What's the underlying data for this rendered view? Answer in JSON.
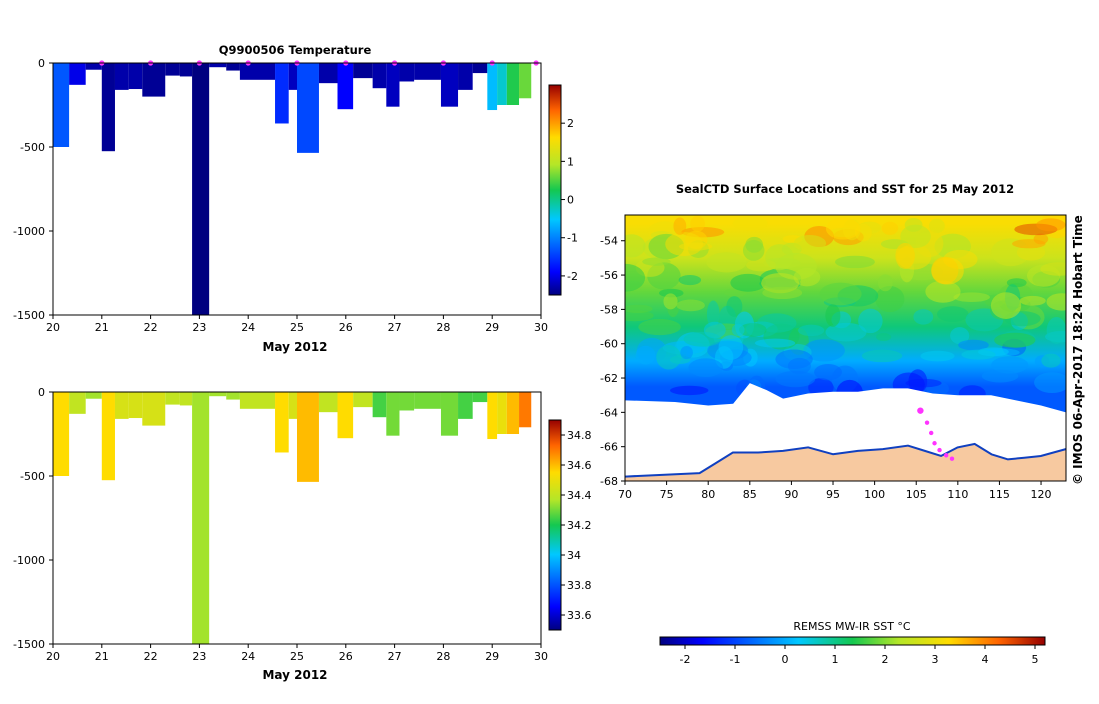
{
  "chart_data": [
    {
      "id": "temp_section",
      "type": "heatmap",
      "title": "Q9900506  Temperature",
      "xlabel": "May 2012",
      "ylabel": "",
      "xlim": [
        20,
        30
      ],
      "ylim": [
        -1500,
        0
      ],
      "xticks": [
        "20",
        "21",
        "22",
        "23",
        "24",
        "25",
        "26",
        "27",
        "28",
        "29",
        "30"
      ],
      "yticks": [
        "0",
        "-500",
        "-1000",
        "-1500"
      ],
      "profile_days": [
        21,
        22,
        23,
        24,
        25,
        26,
        27,
        28,
        29,
        29.9
      ],
      "profiles": [
        {
          "x0": 20.0,
          "x1": 20.33,
          "depth": -500,
          "value": -1.3
        },
        {
          "x0": 20.33,
          "x1": 20.67,
          "depth": -130,
          "value": -2.0
        },
        {
          "x0": 20.67,
          "x1": 21.0,
          "depth": -40,
          "value": -2.3
        },
        {
          "x0": 21.0,
          "x1": 21.27,
          "depth": -525,
          "value": -2.4
        },
        {
          "x0": 21.27,
          "x1": 21.55,
          "depth": -160,
          "value": -2.3
        },
        {
          "x0": 21.55,
          "x1": 21.83,
          "depth": -155,
          "value": -2.3
        },
        {
          "x0": 21.83,
          "x1": 22.3,
          "depth": -200,
          "value": -2.4
        },
        {
          "x0": 22.3,
          "x1": 22.6,
          "depth": -75,
          "value": -2.4
        },
        {
          "x0": 22.6,
          "x1": 22.85,
          "depth": -80,
          "value": -2.4
        },
        {
          "x0": 22.85,
          "x1": 23.2,
          "depth": -1500,
          "value": -2.5
        },
        {
          "x0": 23.2,
          "x1": 23.55,
          "depth": -25,
          "value": -2.3
        },
        {
          "x0": 23.55,
          "x1": 23.83,
          "depth": -45,
          "value": -2.4
        },
        {
          "x0": 23.83,
          "x1": 24.55,
          "depth": -100,
          "value": -2.3
        },
        {
          "x0": 24.55,
          "x1": 24.83,
          "depth": -360,
          "value": -1.6
        },
        {
          "x0": 24.83,
          "x1": 25.0,
          "depth": -160,
          "value": -2.2
        },
        {
          "x0": 25.0,
          "x1": 25.45,
          "depth": -535,
          "value": -1.4
        },
        {
          "x0": 25.45,
          "x1": 25.83,
          "depth": -120,
          "value": -2.3
        },
        {
          "x0": 25.83,
          "x1": 26.15,
          "depth": -275,
          "value": -1.9
        },
        {
          "x0": 26.15,
          "x1": 26.55,
          "depth": -90,
          "value": -2.4
        },
        {
          "x0": 26.55,
          "x1": 26.83,
          "depth": -150,
          "value": -2.3
        },
        {
          "x0": 26.83,
          "x1": 27.1,
          "depth": -260,
          "value": -2.2
        },
        {
          "x0": 27.1,
          "x1": 27.4,
          "depth": -110,
          "value": -2.3
        },
        {
          "x0": 27.4,
          "x1": 27.95,
          "depth": -100,
          "value": -2.3
        },
        {
          "x0": 27.95,
          "x1": 28.3,
          "depth": -260,
          "value": -2.2
        },
        {
          "x0": 28.3,
          "x1": 28.6,
          "depth": -160,
          "value": -2.3
        },
        {
          "x0": 28.6,
          "x1": 28.9,
          "depth": -60,
          "value": -2.4
        },
        {
          "x0": 28.9,
          "x1": 29.1,
          "depth": -280,
          "value": -0.6
        },
        {
          "x0": 29.1,
          "x1": 29.3,
          "depth": -250,
          "value": -0.3
        },
        {
          "x0": 29.3,
          "x1": 29.55,
          "depth": -250,
          "value": 0.3
        },
        {
          "x0": 29.55,
          "x1": 29.8,
          "depth": -210,
          "value": 0.6
        }
      ],
      "colorbar": {
        "min": -2.5,
        "max": 3.0,
        "ticks": [
          "-2",
          "-1",
          "0",
          "1",
          "2"
        ],
        "tick_values": [
          -2,
          -1,
          0,
          1,
          2
        ]
      }
    },
    {
      "id": "sal_section",
      "type": "heatmap",
      "title": "",
      "xlabel": "May 2012",
      "ylabel": "",
      "xlim": [
        20,
        30
      ],
      "ylim": [
        -1500,
        0
      ],
      "xticks": [
        "20",
        "21",
        "22",
        "23",
        "24",
        "25",
        "26",
        "27",
        "28",
        "29",
        "30"
      ],
      "yticks": [
        "0",
        "-500",
        "-1000",
        "-1500"
      ],
      "profiles": [
        {
          "x0": 20.0,
          "x1": 20.33,
          "depth": -500,
          "value": 34.55
        },
        {
          "x0": 20.33,
          "x1": 20.67,
          "depth": -130,
          "value": 34.4
        },
        {
          "x0": 20.67,
          "x1": 21.0,
          "depth": -40,
          "value": 34.35
        },
        {
          "x0": 21.0,
          "x1": 21.27,
          "depth": -525,
          "value": 34.55
        },
        {
          "x0": 21.27,
          "x1": 21.55,
          "depth": -160,
          "value": 34.45
        },
        {
          "x0": 21.55,
          "x1": 21.83,
          "depth": -155,
          "value": 34.45
        },
        {
          "x0": 21.83,
          "x1": 22.3,
          "depth": -200,
          "value": 34.45
        },
        {
          "x0": 22.3,
          "x1": 22.6,
          "depth": -75,
          "value": 34.4
        },
        {
          "x0": 22.6,
          "x1": 22.85,
          "depth": -80,
          "value": 34.4
        },
        {
          "x0": 22.85,
          "x1": 23.2,
          "depth": -1500,
          "value": 34.35
        },
        {
          "x0": 23.2,
          "x1": 23.55,
          "depth": -25,
          "value": 34.35
        },
        {
          "x0": 23.55,
          "x1": 23.83,
          "depth": -45,
          "value": 34.35
        },
        {
          "x0": 23.83,
          "x1": 24.55,
          "depth": -100,
          "value": 34.4
        },
        {
          "x0": 24.55,
          "x1": 24.83,
          "depth": -360,
          "value": 34.55
        },
        {
          "x0": 24.83,
          "x1": 25.0,
          "depth": -160,
          "value": 34.45
        },
        {
          "x0": 25.0,
          "x1": 25.45,
          "depth": -535,
          "value": 34.6
        },
        {
          "x0": 25.45,
          "x1": 25.83,
          "depth": -120,
          "value": 34.4
        },
        {
          "x0": 25.83,
          "x1": 26.15,
          "depth": -275,
          "value": 34.55
        },
        {
          "x0": 26.15,
          "x1": 26.55,
          "depth": -90,
          "value": 34.4
        },
        {
          "x0": 26.55,
          "x1": 26.83,
          "depth": -150,
          "value": 34.25
        },
        {
          "x0": 26.83,
          "x1": 27.1,
          "depth": -260,
          "value": 34.3
        },
        {
          "x0": 27.1,
          "x1": 27.4,
          "depth": -110,
          "value": 34.3
        },
        {
          "x0": 27.4,
          "x1": 27.95,
          "depth": -100,
          "value": 34.3
        },
        {
          "x0": 27.95,
          "x1": 28.3,
          "depth": -260,
          "value": 34.3
        },
        {
          "x0": 28.3,
          "x1": 28.6,
          "depth": -160,
          "value": 34.25
        },
        {
          "x0": 28.6,
          "x1": 28.9,
          "depth": -60,
          "value": 34.25
        },
        {
          "x0": 28.9,
          "x1": 29.1,
          "depth": -280,
          "value": 34.55
        },
        {
          "x0": 29.1,
          "x1": 29.3,
          "depth": -250,
          "value": 34.5
        },
        {
          "x0": 29.3,
          "x1": 29.55,
          "depth": -250,
          "value": 34.6
        },
        {
          "x0": 29.55,
          "x1": 29.8,
          "depth": -210,
          "value": 34.7
        }
      ],
      "colorbar": {
        "min": 33.5,
        "max": 34.9,
        "ticks": [
          "33.6",
          "33.8",
          "34",
          "34.2",
          "34.4",
          "34.6",
          "34.8"
        ],
        "tick_values": [
          33.6,
          33.8,
          34.0,
          34.2,
          34.4,
          34.6,
          34.8
        ]
      }
    },
    {
      "id": "sst_map",
      "type": "heatmap",
      "title": "SealCTD Surface Locations and SST for 25 May 2012",
      "xlabel": "",
      "ylabel": "",
      "xlim": [
        70,
        123
      ],
      "ylim": [
        -68,
        -52.5
      ],
      "xticks": [
        "70",
        "75",
        "80",
        "85",
        "90",
        "95",
        "100",
        "105",
        "110",
        "115",
        "120"
      ],
      "yticks": [
        "-54",
        "-56",
        "-58",
        "-60",
        "-62",
        "-64",
        "-66",
        "-68"
      ],
      "sst_by_latitude": [
        {
          "lat": -53,
          "sst": 3.2
        },
        {
          "lat": -55,
          "sst": 2.6
        },
        {
          "lat": -57,
          "sst": 1.8
        },
        {
          "lat": -59,
          "sst": 1.1
        },
        {
          "lat": -61,
          "sst": 0.0
        },
        {
          "lat": -62.5,
          "sst": -0.8
        }
      ],
      "ice_edge_lat": -63.2,
      "coast_lat": -66.3,
      "ctd_locations": [
        {
          "lon": 105.5,
          "lat": -63.9
        },
        {
          "lon": 106.3,
          "lat": -64.6
        },
        {
          "lon": 106.8,
          "lat": -65.2
        },
        {
          "lon": 107.2,
          "lat": -65.8
        },
        {
          "lon": 107.8,
          "lat": -66.2
        },
        {
          "lon": 108.6,
          "lat": -66.5
        },
        {
          "lon": 109.3,
          "lat": -66.7
        }
      ],
      "colorbar": {
        "label": "REMSS MW-IR SST °C",
        "min": -2.5,
        "max": 5.2,
        "ticks": [
          "-2",
          "-1",
          "0",
          "1",
          "2",
          "3",
          "4",
          "5"
        ],
        "tick_values": [
          -2,
          -1,
          0,
          1,
          2,
          3,
          4,
          5
        ]
      },
      "watermark": "© IMOS 06-Apr-2017 18:24 Hobart Time"
    }
  ],
  "colors": {
    "land": "#f7c9a0",
    "ice": "#ffffff",
    "marker": "#ff33ff",
    "axis": "#000000",
    "coast_shelf": "#1040c0"
  }
}
